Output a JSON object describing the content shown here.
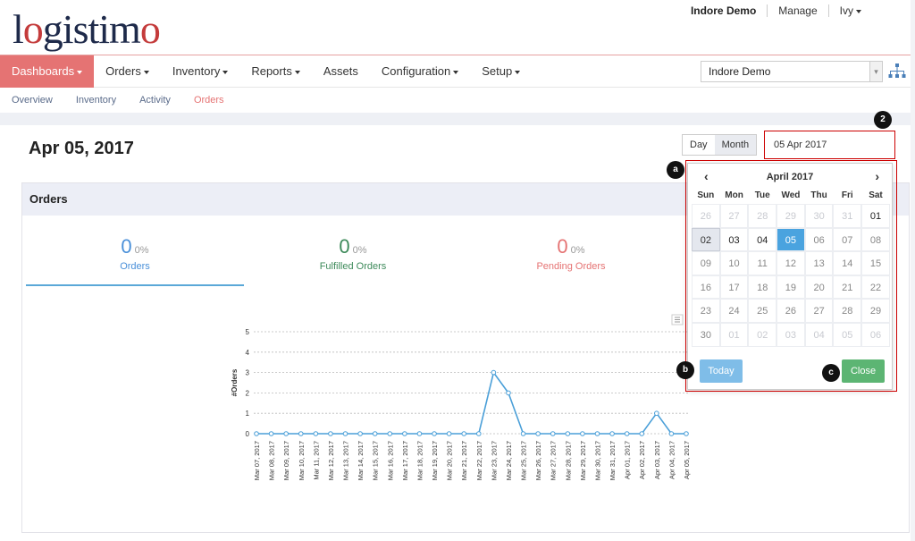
{
  "app": {
    "logo_text": "logistimo",
    "domain_name": "Indore Demo",
    "manage_label": "Manage",
    "user_label": "Ivy"
  },
  "nav": {
    "items": [
      {
        "label": "Dashboards",
        "dropdown": true,
        "active": true
      },
      {
        "label": "Orders",
        "dropdown": true
      },
      {
        "label": "Inventory",
        "dropdown": true
      },
      {
        "label": "Reports",
        "dropdown": true
      },
      {
        "label": "Assets",
        "dropdown": false
      },
      {
        "label": "Configuration",
        "dropdown": true
      },
      {
        "label": "Setup",
        "dropdown": true
      }
    ],
    "domain_select_value": "Indore Demo"
  },
  "subnav": {
    "items": [
      "Overview",
      "Inventory",
      "Activity",
      "Orders"
    ],
    "active": "Orders"
  },
  "page": {
    "date_title": "Apr 05, 2017",
    "period_day": "Day",
    "period_month": "Month",
    "date_input_value": "05 Apr 2017"
  },
  "panel": {
    "title": "Orders",
    "stats": [
      {
        "value": "0",
        "pct": "0%",
        "label": "Orders",
        "color": "#4a90d9"
      },
      {
        "value": "0",
        "pct": "0%",
        "label": "Fulfilled Orders",
        "color": "#3d8a5a"
      },
      {
        "value": "0",
        "pct": "0%",
        "label": "Pending Orders",
        "color": "#e57373"
      }
    ]
  },
  "chart_data": {
    "type": "line",
    "ylabel": "#Orders",
    "ylim": [
      0,
      5
    ],
    "yticks": [
      0,
      1,
      2,
      3,
      4,
      5
    ],
    "grid": true,
    "series_color": "#4a9fd8",
    "categories": [
      "Mar 07, 2017",
      "Mar 08, 2017",
      "Mar 09, 2017",
      "Mar 10, 2017",
      "Mar 11, 2017",
      "Mar 12, 2017",
      "Mar 13, 2017",
      "Mar 14, 2017",
      "Mar 15, 2017",
      "Mar 16, 2017",
      "Mar 17, 2017",
      "Mar 18, 2017",
      "Mar 19, 2017",
      "Mar 20, 2017",
      "Mar 21, 2017",
      "Mar 22, 2017",
      "Mar 23, 2017",
      "Mar 24, 2017",
      "Mar 25, 2017",
      "Mar 26, 2017",
      "Mar 27, 2017",
      "Mar 28, 2017",
      "Mar 29, 2017",
      "Mar 30, 2017",
      "Mar 31, 2017",
      "Apr 01, 2017",
      "Apr 02, 2017",
      "Apr 03, 2017",
      "Apr 04, 2017",
      "Apr 05, 2017"
    ],
    "values": [
      0,
      0,
      0,
      0,
      0,
      0,
      0,
      0,
      0,
      0,
      0,
      0,
      0,
      0,
      0,
      0,
      3,
      2,
      0,
      0,
      0,
      0,
      0,
      0,
      0,
      0,
      0,
      1,
      0,
      0
    ]
  },
  "datepicker": {
    "month_label": "April 2017",
    "prev_label": "‹",
    "next_label": "›",
    "weekdays": [
      "Sun",
      "Mon",
      "Tue",
      "Wed",
      "Thu",
      "Fri",
      "Sat"
    ],
    "weeks": [
      [
        {
          "d": "26",
          "s": "muted"
        },
        {
          "d": "27",
          "s": "muted"
        },
        {
          "d": "28",
          "s": "muted"
        },
        {
          "d": "29",
          "s": "muted"
        },
        {
          "d": "30",
          "s": "muted"
        },
        {
          "d": "31",
          "s": "muted"
        },
        {
          "d": "01",
          "s": "bold"
        }
      ],
      [
        {
          "d": "02",
          "s": "today"
        },
        {
          "d": "03",
          "s": "bold"
        },
        {
          "d": "04",
          "s": "bold"
        },
        {
          "d": "05",
          "s": "selected"
        },
        {
          "d": "06",
          "s": "normal"
        },
        {
          "d": "07",
          "s": "normal"
        },
        {
          "d": "08",
          "s": "normal"
        }
      ],
      [
        {
          "d": "09",
          "s": "normal"
        },
        {
          "d": "10",
          "s": "normal"
        },
        {
          "d": "11",
          "s": "normal"
        },
        {
          "d": "12",
          "s": "normal"
        },
        {
          "d": "13",
          "s": "normal"
        },
        {
          "d": "14",
          "s": "normal"
        },
        {
          "d": "15",
          "s": "normal"
        }
      ],
      [
        {
          "d": "16",
          "s": "normal"
        },
        {
          "d": "17",
          "s": "normal"
        },
        {
          "d": "18",
          "s": "normal"
        },
        {
          "d": "19",
          "s": "normal"
        },
        {
          "d": "20",
          "s": "normal"
        },
        {
          "d": "21",
          "s": "normal"
        },
        {
          "d": "22",
          "s": "normal"
        }
      ],
      [
        {
          "d": "23",
          "s": "normal"
        },
        {
          "d": "24",
          "s": "normal"
        },
        {
          "d": "25",
          "s": "normal"
        },
        {
          "d": "26",
          "s": "normal"
        },
        {
          "d": "27",
          "s": "normal"
        },
        {
          "d": "28",
          "s": "normal"
        },
        {
          "d": "29",
          "s": "normal"
        }
      ],
      [
        {
          "d": "30",
          "s": "normal"
        },
        {
          "d": "01",
          "s": "muted"
        },
        {
          "d": "02",
          "s": "muted"
        },
        {
          "d": "03",
          "s": "muted"
        },
        {
          "d": "04",
          "s": "muted"
        },
        {
          "d": "05",
          "s": "muted"
        },
        {
          "d": "06",
          "s": "muted"
        }
      ]
    ],
    "today_button": "Today",
    "close_button": "Close"
  },
  "annotations": {
    "marker_2": "2",
    "marker_a": "a",
    "marker_b": "b",
    "marker_c": "c"
  }
}
